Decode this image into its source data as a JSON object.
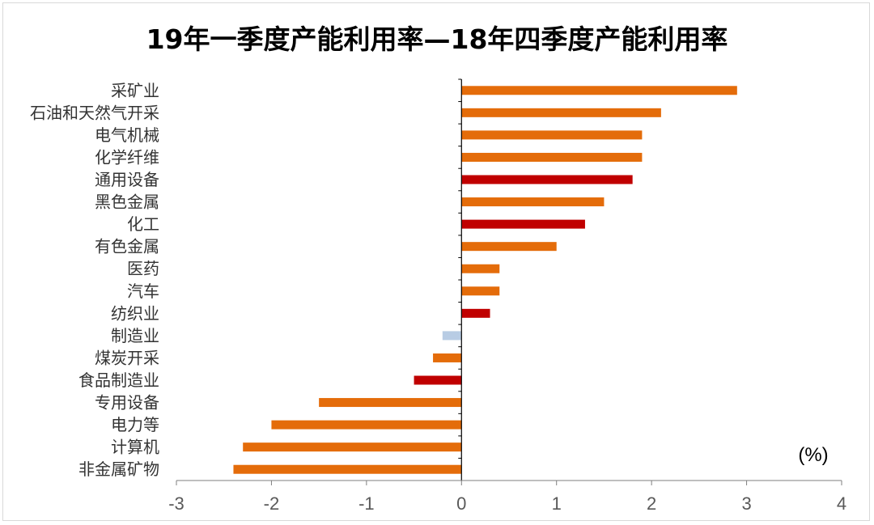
{
  "chart_data": {
    "type": "bar",
    "orientation": "horizontal",
    "title": "19年一季度产能利用率—18年四季度产能利用率",
    "unit": "(%)",
    "xlim": [
      -3,
      4
    ],
    "xticks": [
      "-3",
      "-2",
      "-1",
      "0",
      "1",
      "2",
      "3",
      "4"
    ],
    "categories": [
      "采矿业",
      "石油和天然气开采",
      "电气机械",
      "化学纤维",
      "通用设备",
      "黑色金属",
      "化工",
      "有色金属",
      "医药",
      "汽车",
      "纺织业",
      "制造业",
      "煤炭开采",
      "食品制造业",
      "专用设备",
      "电力等",
      "计算机",
      "非金属矿物"
    ],
    "values": [
      2.9,
      2.1,
      1.9,
      1.9,
      1.8,
      1.5,
      1.3,
      1.0,
      0.4,
      0.4,
      0.3,
      -0.2,
      -0.3,
      -0.5,
      -1.5,
      -2.0,
      -2.3,
      -2.4
    ],
    "colors": [
      "#E46C0A",
      "#E46C0A",
      "#E46C0A",
      "#E46C0A",
      "#C00000",
      "#E46C0A",
      "#C00000",
      "#E46C0A",
      "#E46C0A",
      "#E46C0A",
      "#C00000",
      "#B8CCE4",
      "#E46C0A",
      "#C00000",
      "#E46C0A",
      "#E46C0A",
      "#E46C0A",
      "#E46C0A"
    ],
    "grid": false,
    "legend": "none"
  }
}
